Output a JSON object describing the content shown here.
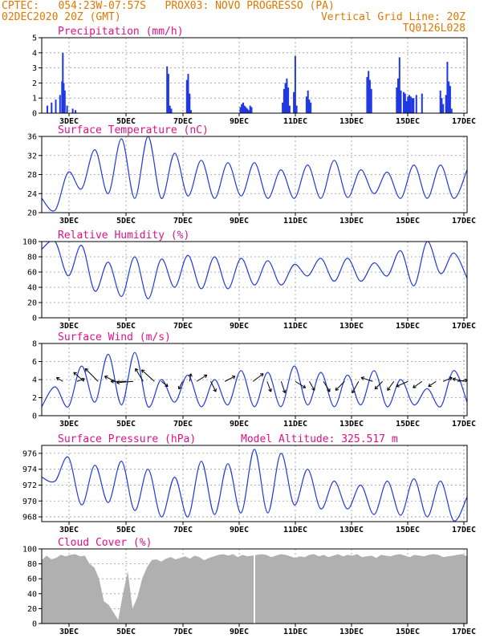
{
  "header": {
    "station": "CPTEC:   054:23W-07:57S   PROX03: NOVO PROGRESSO (PA)",
    "date": "02DEC2020 20Z (GMT)",
    "grid_note": "Vertical Grid Line: 20Z",
    "code": "TQ0126L028"
  },
  "colors": {
    "header": "#e07800",
    "title": "#e0108a",
    "series": "#2038e0",
    "cloud": "#b0b0b0",
    "axis": "#000000"
  },
  "x_ticks": [
    "3DEC",
    "5DEC",
    "7DEC",
    "9DEC",
    "11DEC",
    "13DEC",
    "15DEC",
    "17DEC"
  ],
  "chart_data": [
    {
      "type": "bar",
      "title": "Precipitation (mm/h)",
      "ylim": [
        0,
        5
      ],
      "yticks": [
        0,
        1,
        2,
        3,
        4,
        5
      ],
      "events": [
        [
          0.2,
          0.5
        ],
        [
          0.35,
          0.7
        ],
        [
          0.5,
          0.9
        ],
        [
          0.65,
          1.2
        ],
        [
          0.72,
          2.1
        ],
        [
          0.75,
          4.0
        ],
        [
          0.78,
          2.0
        ],
        [
          0.82,
          1.5
        ],
        [
          0.9,
          0.5
        ],
        [
          1.1,
          0.3
        ],
        [
          1.2,
          0.2
        ],
        [
          4.45,
          3.1
        ],
        [
          4.5,
          2.6
        ],
        [
          4.55,
          0.5
        ],
        [
          4.6,
          0.3
        ],
        [
          5.15,
          2.2
        ],
        [
          5.2,
          2.6
        ],
        [
          5.25,
          1.3
        ],
        [
          5.3,
          0.2
        ],
        [
          7.05,
          0.4
        ],
        [
          7.1,
          0.6
        ],
        [
          7.15,
          0.7
        ],
        [
          7.2,
          0.5
        ],
        [
          7.25,
          0.4
        ],
        [
          7.3,
          0.3
        ],
        [
          7.35,
          0.2
        ],
        [
          7.4,
          0.5
        ],
        [
          7.45,
          0.4
        ],
        [
          8.55,
          0.7
        ],
        [
          8.6,
          1.6
        ],
        [
          8.65,
          2.0
        ],
        [
          8.7,
          2.3
        ],
        [
          8.75,
          1.7
        ],
        [
          8.8,
          0.5
        ],
        [
          8.95,
          1.4
        ],
        [
          9.0,
          3.8
        ],
        [
          9.05,
          0.5
        ],
        [
          9.4,
          1.1
        ],
        [
          9.45,
          1.5
        ],
        [
          9.5,
          0.9
        ],
        [
          9.55,
          0.7
        ],
        [
          11.55,
          2.4
        ],
        [
          11.6,
          2.8
        ],
        [
          11.65,
          2.2
        ],
        [
          11.7,
          1.6
        ],
        [
          12.6,
          1.7
        ],
        [
          12.65,
          2.3
        ],
        [
          12.7,
          3.7
        ],
        [
          12.75,
          1.5
        ],
        [
          12.85,
          1.4
        ],
        [
          12.9,
          1.3
        ],
        [
          12.95,
          0.8
        ],
        [
          13.0,
          1.1
        ],
        [
          13.05,
          1.2
        ],
        [
          13.1,
          1.1
        ],
        [
          13.15,
          1.0
        ],
        [
          13.2,
          1.0
        ],
        [
          13.3,
          1.2
        ],
        [
          13.5,
          1.3
        ],
        [
          14.15,
          1.5
        ],
        [
          14.2,
          1.0
        ],
        [
          14.25,
          0.6
        ],
        [
          14.35,
          1.2
        ],
        [
          14.4,
          3.4
        ],
        [
          14.45,
          2.1
        ],
        [
          14.5,
          1.8
        ],
        [
          14.55,
          0.3
        ]
      ]
    },
    {
      "type": "line",
      "title": "Surface Temperature (nC)",
      "ylim": [
        20,
        36
      ],
      "yticks": [
        20,
        24,
        28,
        32,
        36
      ],
      "values": [
        23.0,
        20.5,
        28.5,
        25.0,
        33.2,
        24.0,
        35.5,
        23.0,
        36.0,
        23.0,
        32.5,
        23.5,
        31.0,
        23.0,
        30.5,
        23.5,
        30.5,
        23.0,
        29.0,
        23.0,
        30.0,
        23.0,
        31.0,
        23.2,
        29.0,
        24.0,
        28.5,
        23.0,
        30.0,
        23.0,
        30.0,
        23.0,
        29.0
      ]
    },
    {
      "type": "line",
      "title": "Relative Humidity (%)",
      "ylim": [
        0,
        100
      ],
      "yticks": [
        0,
        20,
        40,
        60,
        80,
        100
      ],
      "values": [
        90,
        100,
        55,
        95,
        35,
        73,
        28,
        80,
        25,
        77,
        40,
        82,
        38,
        80,
        38,
        78,
        43,
        75,
        43,
        70,
        55,
        78,
        48,
        78,
        48,
        72,
        55,
        88,
        42,
        100,
        58,
        85,
        52
      ]
    },
    {
      "type": "line",
      "title": "Surface Wind (m/s)",
      "ylim": [
        0,
        8
      ],
      "yticks": [
        0,
        2,
        4,
        6,
        8
      ],
      "values": [
        1.0,
        3.2,
        1.0,
        5.5,
        1.5,
        6.8,
        1.2,
        7.0,
        1.0,
        4.0,
        1.5,
        4.5,
        1.0,
        4.0,
        1.2,
        5.0,
        1.0,
        4.8,
        1.0,
        5.5,
        1.2,
        4.8,
        1.0,
        4.5,
        1.2,
        5.0,
        1.0,
        4.0,
        1.2,
        3.0,
        1.0,
        5.0,
        1.5
      ],
      "vectors": [
        [
          0.75,
          -0.5,
          0.3
        ],
        [
          1.25,
          0.6,
          0.2
        ],
        [
          1.5,
          -0.8,
          0.7
        ],
        [
          2.0,
          -1.0,
          1.0
        ],
        [
          2.6,
          -0.8,
          0.4
        ],
        [
          3.0,
          -1.2,
          0.0
        ],
        [
          3.25,
          -1.3,
          -0.1
        ],
        [
          3.6,
          -0.6,
          1.0
        ],
        [
          4.0,
          -1.0,
          0.9
        ],
        [
          4.25,
          0.5,
          -0.4
        ],
        [
          5.0,
          -0.3,
          -0.6
        ],
        [
          5.25,
          0.1,
          0.6
        ],
        [
          5.5,
          0.8,
          0.5
        ],
        [
          6.0,
          0.4,
          -0.8
        ],
        [
          6.5,
          0.8,
          0.4
        ],
        [
          7.5,
          0.8,
          0.6
        ],
        [
          8.0,
          0.3,
          -0.8
        ],
        [
          8.5,
          0.3,
          -0.9
        ],
        [
          9.0,
          0.8,
          -0.5
        ],
        [
          9.5,
          0.4,
          -0.7
        ],
        [
          10.0,
          0.5,
          -0.8
        ],
        [
          10.75,
          -0.7,
          -0.7
        ],
        [
          11.25,
          -0.5,
          -0.9
        ],
        [
          11.75,
          -0.9,
          0.3
        ],
        [
          12.1,
          -0.6,
          -0.6
        ],
        [
          12.5,
          -0.5,
          -0.7
        ],
        [
          13.0,
          -0.9,
          -0.4
        ],
        [
          13.5,
          -0.7,
          -0.5
        ],
        [
          14.0,
          -0.6,
          -0.4
        ],
        [
          14.25,
          0.7,
          0.3
        ],
        [
          14.75,
          0.8,
          0.1
        ],
        [
          15.0,
          -0.9,
          0.2
        ]
      ]
    },
    {
      "type": "line",
      "title": "Surface Pressure (hPa)",
      "subtitle": "Model Altitude: 325.517 m",
      "ylim": [
        967.4,
        977.0
      ],
      "yticks": [
        968,
        970,
        972,
        974,
        976
      ],
      "values": [
        973.0,
        972.5,
        975.5,
        969.5,
        974.5,
        969.8,
        975.0,
        968.8,
        974.0,
        968.0,
        973.0,
        968.0,
        975.0,
        968.3,
        974.7,
        968.5,
        976.5,
        968.5,
        976.0,
        969.5,
        974.0,
        969.0,
        972.5,
        969.0,
        972.0,
        968.3,
        972.5,
        968.2,
        972.8,
        968.0,
        972.5,
        967.5,
        970.5
      ]
    },
    {
      "type": "area",
      "title": "Cloud Cover (%)",
      "ylim": [
        0,
        100
      ],
      "yticks": [
        0,
        20,
        40,
        60,
        80,
        100
      ],
      "values": [
        85,
        91,
        86,
        88,
        92,
        90,
        92,
        93,
        90,
        91,
        80,
        75,
        60,
        30,
        25,
        15,
        5,
        40,
        70,
        20,
        35,
        60,
        75,
        85,
        86,
        83,
        87,
        89,
        86,
        88,
        90,
        87,
        91,
        89,
        85,
        88,
        90,
        92,
        93,
        91,
        93,
        89,
        92,
        90,
        91,
        92,
        93,
        92,
        89,
        91,
        93,
        92,
        90,
        88,
        90,
        89,
        92,
        93,
        90,
        92,
        89,
        91,
        93,
        90,
        92,
        91,
        93,
        89,
        90,
        91,
        88,
        92,
        91,
        90,
        92,
        93,
        91,
        89,
        92,
        91,
        90,
        92,
        93,
        92,
        89,
        90,
        91,
        92,
        93,
        90
      ],
      "gaps": [
        7.55
      ]
    }
  ]
}
